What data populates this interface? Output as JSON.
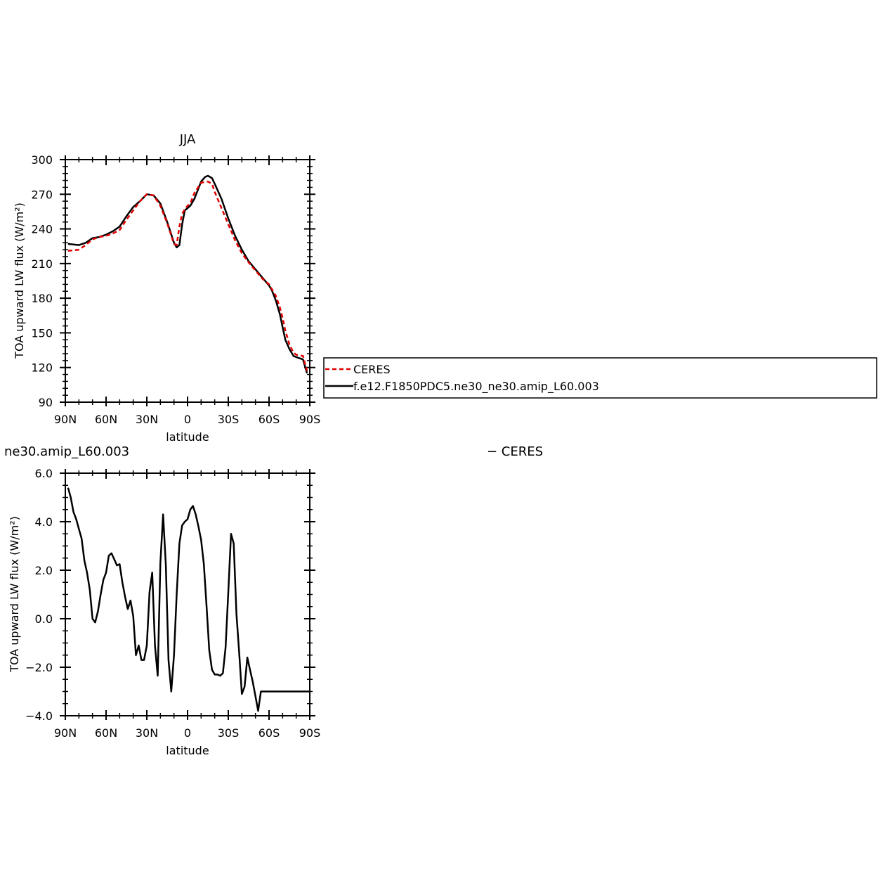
{
  "chart_data": [
    {
      "type": "line",
      "title": "JJA",
      "xlabel": "latitude",
      "ylabel": "TOA upward LW flux (W/m²)",
      "xlim": [
        90,
        -90
      ],
      "ylim": [
        90,
        300
      ],
      "x_ticks": [
        {
          "value": 90,
          "label": "90N"
        },
        {
          "value": 60,
          "label": "60N"
        },
        {
          "value": 30,
          "label": "30N"
        },
        {
          "value": 0,
          "label": "0"
        },
        {
          "value": -30,
          "label": "30S"
        },
        {
          "value": -60,
          "label": "60S"
        },
        {
          "value": -90,
          "label": "90S"
        }
      ],
      "y_ticks": [
        {
          "value": 90,
          "label": "90"
        },
        {
          "value": 120,
          "label": "120"
        },
        {
          "value": 150,
          "label": "150"
        },
        {
          "value": 180,
          "label": "180"
        },
        {
          "value": 210,
          "label": "210"
        },
        {
          "value": 240,
          "label": "240"
        },
        {
          "value": 270,
          "label": "270"
        },
        {
          "value": 300,
          "label": "300"
        }
      ],
      "grid": false,
      "legend_position": "right",
      "series": [
        {
          "name": "CERES",
          "color": "#e00000",
          "dash": "dashed",
          "x": [
            88,
            80,
            75,
            70,
            65,
            60,
            55,
            50,
            45,
            40,
            35,
            30,
            25,
            20,
            15,
            10,
            8,
            6,
            4,
            2,
            0,
            -2,
            -5,
            -10,
            -15,
            -18,
            -20,
            -25,
            -30,
            -35,
            -40,
            -45,
            -50,
            -55,
            -60,
            -62,
            -65,
            -68,
            -70,
            -72,
            -75,
            -78,
            -80,
            -85,
            -88
          ],
          "y": [
            221,
            222,
            226,
            231,
            233,
            234,
            236,
            239,
            248,
            256,
            264,
            270,
            269,
            260,
            245,
            227,
            226,
            242,
            253,
            257,
            260,
            262,
            271,
            280,
            281,
            279,
            272,
            258,
            244,
            230,
            219,
            211,
            204,
            197,
            192,
            188,
            182,
            172,
            163,
            152,
            140,
            133,
            131,
            130,
            117
          ]
        },
        {
          "name": "f.e12.F1850PDC5.ne30_ne30.amip_L60.003",
          "color": "#000000",
          "dash": "solid",
          "x": [
            88,
            80,
            75,
            70,
            65,
            60,
            55,
            50,
            45,
            40,
            35,
            30,
            25,
            20,
            15,
            10,
            8,
            6,
            4,
            2,
            0,
            -2,
            -5,
            -10,
            -13,
            -15,
            -18,
            -20,
            -25,
            -30,
            -35,
            -40,
            -45,
            -50,
            -55,
            -60,
            -62,
            -65,
            -68,
            -70,
            -72,
            -75,
            -78,
            -80,
            -85,
            -88
          ],
          "y": [
            227,
            226,
            228,
            232,
            233,
            235,
            238,
            242,
            251,
            259,
            264,
            270,
            269,
            262,
            246,
            228,
            224,
            226,
            244,
            256,
            258,
            260,
            266,
            281,
            285,
            286,
            284,
            279,
            266,
            249,
            234,
            222,
            212,
            205,
            198,
            191,
            187,
            178,
            166,
            155,
            144,
            136,
            130,
            129,
            127,
            115
          ]
        }
      ]
    },
    {
      "type": "line",
      "title": "ne30.amip_L60.003",
      "title_right": "− CERES",
      "xlabel": "latitude",
      "ylabel": "TOA upward LW flux (W/m²)",
      "xlim": [
        90,
        -90
      ],
      "ylim": [
        -4.0,
        6.0
      ],
      "x_ticks": [
        {
          "value": 90,
          "label": "90N"
        },
        {
          "value": 60,
          "label": "60N"
        },
        {
          "value": 30,
          "label": "30N"
        },
        {
          "value": 0,
          "label": "0"
        },
        {
          "value": -30,
          "label": "30S"
        },
        {
          "value": -60,
          "label": "60S"
        },
        {
          "value": -90,
          "label": "90S"
        }
      ],
      "y_ticks": [
        {
          "value": -4.0,
          "label": "−4.0"
        },
        {
          "value": -2.0,
          "label": "−2.0"
        },
        {
          "value": 0.0,
          "label": "0.0"
        },
        {
          "value": 2.0,
          "label": "2.0"
        },
        {
          "value": 4.0,
          "label": "4.0"
        },
        {
          "value": 6.0,
          "label": "6.0"
        }
      ],
      "grid": false,
      "series": [
        {
          "color": "#000000",
          "x": [
            88,
            86,
            84,
            82,
            80,
            78,
            76,
            74,
            72,
            70,
            68,
            66,
            64,
            62,
            60,
            58,
            56,
            54,
            52,
            50,
            48,
            46,
            44,
            42,
            40,
            38,
            36,
            34,
            32,
            30,
            28,
            26,
            24,
            22,
            20,
            18,
            16,
            14,
            12,
            10,
            8,
            6,
            4,
            2,
            0,
            -2,
            -4,
            -6,
            -8,
            -10,
            -12,
            -14,
            -16,
            -18,
            -20,
            -22,
            -24,
            -26,
            -28,
            -30,
            -32,
            -34,
            -36,
            -38,
            -40,
            -42,
            -44,
            -46,
            -48,
            -50,
            -52,
            -54,
            -56,
            -58,
            -60,
            -62,
            -64,
            -66,
            -68,
            -70,
            -72,
            -74,
            -76,
            -78,
            -80,
            -82,
            -84,
            -86,
            -88,
            -90
          ],
          "y": [
            5.4,
            5.0,
            4.4,
            4.1,
            3.7,
            3.3,
            2.4,
            1.9,
            1.2,
            0.0,
            -0.15,
            0.3,
            1.0,
            1.6,
            1.9,
            2.6,
            2.7,
            2.45,
            2.2,
            2.25,
            1.5,
            0.9,
            0.4,
            0.75,
            0.1,
            -1.5,
            -1.1,
            -1.7,
            -1.7,
            -1.1,
            1.1,
            1.9,
            -1.1,
            -2.35,
            2.3,
            4.3,
            2.2,
            -1.7,
            -3.0,
            -1.5,
            1.0,
            3.1,
            3.85,
            4.0,
            4.1,
            4.5,
            4.65,
            4.3,
            3.8,
            3.25,
            2.25,
            0.5,
            -1.3,
            -2.1,
            -2.3,
            -2.3,
            -2.35,
            -2.25,
            -1.2,
            1.1,
            3.5,
            3.1,
            0.2,
            -1.4,
            -3.1,
            -2.8,
            -1.6,
            -2.1,
            -2.6,
            -3.2,
            -3.8,
            -3.0,
            -3.0,
            -3.0,
            -3.0,
            -3.0,
            -3.0,
            -3.0,
            -3.0,
            -3.0,
            -3.0,
            -3.0,
            -3.0,
            -3.0,
            -3.0,
            -3.0,
            -3.0,
            -3.0,
            -3.0,
            -3.0
          ]
        }
      ]
    }
  ]
}
